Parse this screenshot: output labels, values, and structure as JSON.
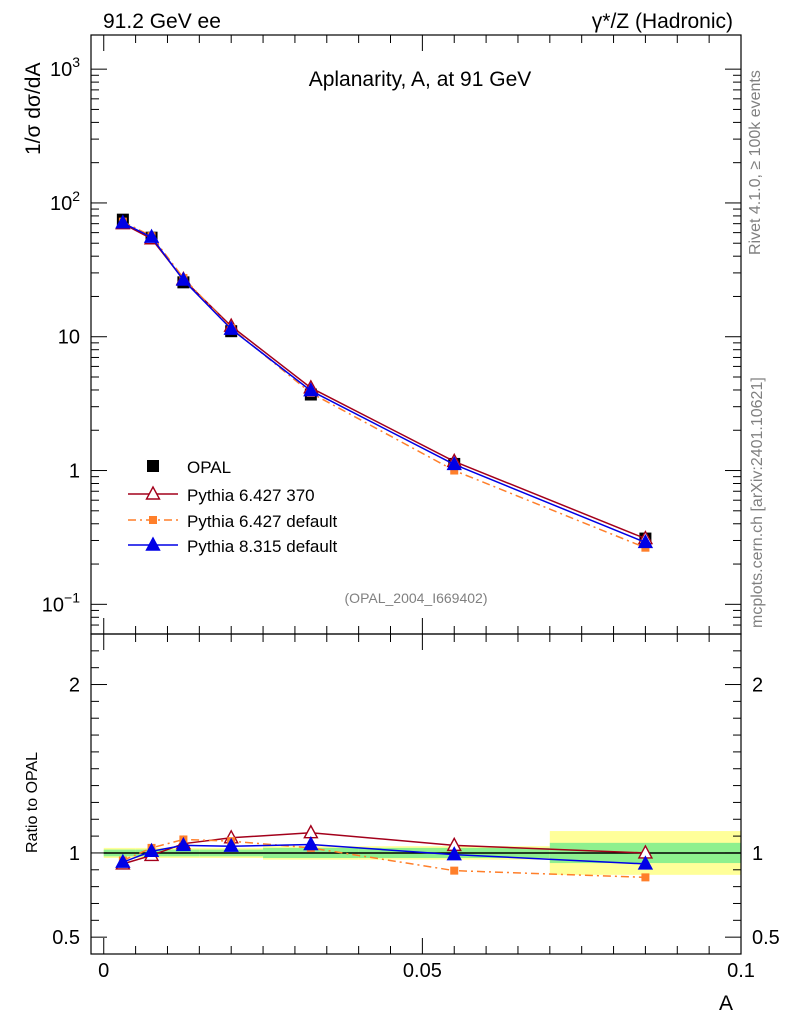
{
  "header": {
    "left": "91.2 GeV ee",
    "right": "γ*/Z (Hadronic)"
  },
  "side_labels": {
    "rivet": "Rivet 4.1.0, ≥ 100k events",
    "mcplots": "mcplots.cern.ch [arXiv:2401.10621]"
  },
  "chart_data": [
    {
      "type": "line",
      "title": "Aplanarity, A, at 91 GeV",
      "analysis_tag": "(OPAL_2004_I669402)",
      "ylabel": "1/σ  dσ/dA",
      "xlabel": "A",
      "yscale": "log",
      "ylim": [
        0.06,
        1800
      ],
      "xlim": [
        -0.002,
        0.1
      ],
      "y_ticks": [
        {
          "value": 0.1,
          "label": "10",
          "sup": "−1"
        },
        {
          "value": 1,
          "label": "1",
          "sup": ""
        },
        {
          "value": 10,
          "label": "10",
          "sup": ""
        },
        {
          "value": 100,
          "label": "10",
          "sup": "2"
        },
        {
          "value": 1000,
          "label": "10",
          "sup": "3"
        }
      ],
      "x": [
        0.003,
        0.0075,
        0.0125,
        0.02,
        0.0325,
        0.055,
        0.085
      ],
      "series": [
        {
          "name": "OPAL",
          "color": "#000000",
          "marker": "square",
          "style": "data",
          "values": [
            75,
            55,
            25.5,
            11,
            3.7,
            1.12,
            0.31
          ]
        },
        {
          "name": "Pythia 6.427 370",
          "color": "#a3001b",
          "marker": "open-triangle",
          "style": "solid",
          "values": [
            70,
            54,
            26.8,
            12,
            4.15,
            1.17,
            0.31
          ]
        },
        {
          "name": "Pythia 6.427 default",
          "color": "#ff7f2a",
          "marker": "square",
          "style": "dashdot",
          "values": [
            72.5,
            56.5,
            27.5,
            11.6,
            3.8,
            1.0,
            0.265
          ]
        },
        {
          "name": "Pythia 8.315 default",
          "color": "#0000e6",
          "marker": "triangle",
          "style": "solid",
          "values": [
            71,
            55.5,
            26.5,
            11.4,
            3.95,
            1.11,
            0.29
          ]
        }
      ]
    },
    {
      "type": "line",
      "ylabel": "Ratio to OPAL",
      "xlabel": "A",
      "ylim": [
        0.4,
        2.3
      ],
      "y_ticks": [
        {
          "value": 0.5,
          "label": "0.5"
        },
        {
          "value": 1,
          "label": "1"
        },
        {
          "value": 2,
          "label": "2"
        }
      ],
      "x_ticks": [
        {
          "value": 0,
          "label": "0"
        },
        {
          "value": 0.05,
          "label": "0.05"
        },
        {
          "value": 0.1,
          "label": "0.1"
        }
      ],
      "x": [
        0.003,
        0.0075,
        0.0125,
        0.02,
        0.0325,
        0.055,
        0.085
      ],
      "bands": {
        "bin_edges": [
          0,
          0.005,
          0.01,
          0.015,
          0.025,
          0.04,
          0.07,
          0.1
        ],
        "stat": [
          0.02,
          0.02,
          0.02,
          0.02,
          0.03,
          0.03,
          0.06
        ],
        "total": [
          0.03,
          0.03,
          0.03,
          0.03,
          0.04,
          0.04,
          0.13
        ]
      },
      "series": [
        {
          "name": "Pythia 6.427 370",
          "values": [
            0.935,
            0.985,
            1.055,
            1.09,
            1.12,
            1.045,
            1.0
          ]
        },
        {
          "name": "Pythia 6.427 default",
          "values": [
            0.955,
            1.03,
            1.08,
            1.07,
            1.03,
            0.895,
            0.855
          ]
        },
        {
          "name": "Pythia 8.315 default",
          "values": [
            0.945,
            1.01,
            1.045,
            1.04,
            1.05,
            0.99,
            0.935
          ]
        }
      ]
    }
  ]
}
